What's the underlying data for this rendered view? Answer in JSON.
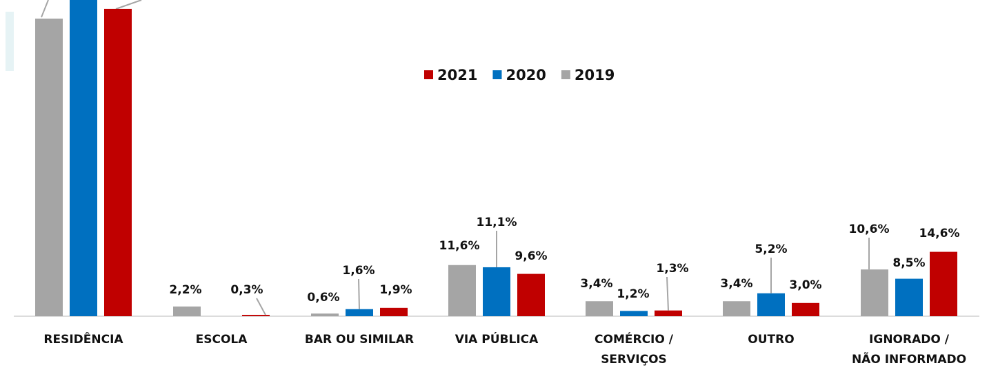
{
  "chart_data": {
    "type": "bar",
    "categories": [
      "RESIDÊNCIA",
      "ESCOLA",
      "BAR OU SIMILAR",
      "VIA PÚBLICA",
      "COMÉRCIO / SERVIÇOS",
      "OUTRO",
      "IGNORADO / NÃO INFORMADO"
    ],
    "series": [
      {
        "name": "2021",
        "color": "#c00000",
        "values": [
          69.7,
          0.3,
          1.9,
          9.6,
          1.3,
          3.0,
          14.6
        ],
        "value_labels": [
          null,
          "0,3%",
          "1,9%",
          "9,6%",
          "1,3%",
          "3,0%",
          "14,6%"
        ]
      },
      {
        "name": "2020",
        "color": "#0070c0",
        "values": [
          73,
          null,
          1.6,
          11.1,
          1.2,
          5.2,
          8.5
        ],
        "value_labels": [
          null,
          null,
          "1,6%",
          "11,1%",
          "1,2%",
          "5,2%",
          "8,5%"
        ]
      },
      {
        "name": "2019",
        "color": "#a5a5a5",
        "values": [
          67.5,
          2.2,
          0.6,
          11.6,
          3.4,
          3.4,
          10.6
        ],
        "value_labels": [
          null,
          "2,2%",
          "0,6%",
          "11,6%",
          "3,4%",
          "3,4%",
          "10,6%"
        ]
      }
    ]
  }
}
